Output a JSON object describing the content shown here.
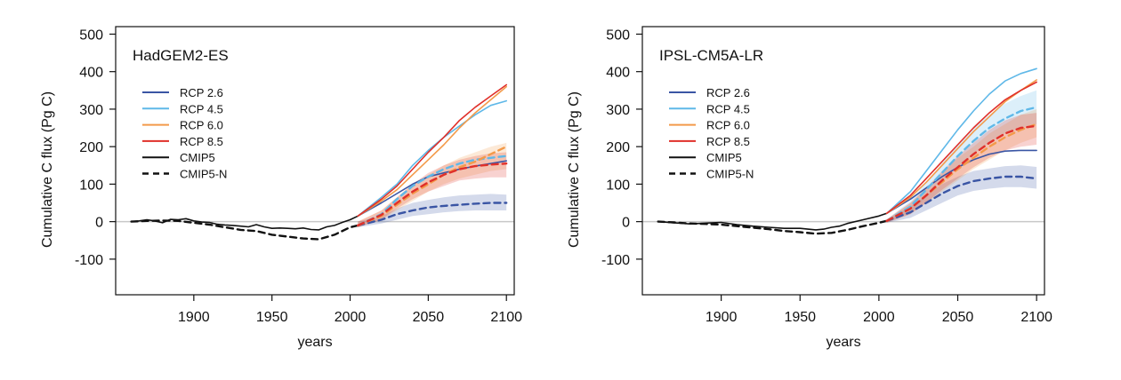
{
  "chart_data": [
    {
      "type": "line",
      "title": "HadGEM2-ES",
      "xlabel": "years",
      "ylabel": "Cumulative C flux (Pg C)",
      "xlim": [
        1850,
        2105
      ],
      "ylim": [
        -195,
        520
      ],
      "xticks": [
        1900,
        1950,
        2000,
        2050,
        2100
      ],
      "yticks": [
        -100,
        0,
        100,
        200,
        300,
        400,
        500
      ],
      "zero_line": true,
      "legend_position": "upper-left",
      "legend": [
        {
          "label": "RCP 2.6",
          "color": "#3a55a4",
          "dash": "solid"
        },
        {
          "label": "RCP 4.5",
          "color": "#5fb8e8",
          "dash": "solid"
        },
        {
          "label": "RCP 6.0",
          "color": "#f39a4a",
          "dash": "solid"
        },
        {
          "label": "RCP 8.5",
          "color": "#e0302a",
          "dash": "solid"
        },
        {
          "label": "CMIP5",
          "color": "#111111",
          "dash": "solid"
        },
        {
          "label": "CMIP5-N",
          "color": "#111111",
          "dash": "dashed"
        }
      ],
      "series": [
        {
          "label": "HadGEM2-ES historical",
          "kind": "historical",
          "color": "#111111",
          "dash": "solid",
          "x": [
            1860,
            1865,
            1870,
            1875,
            1880,
            1885,
            1890,
            1895,
            1900,
            1905,
            1910,
            1915,
            1920,
            1925,
            1930,
            1935,
            1940,
            1945,
            1950,
            1955,
            1960,
            1965,
            1970,
            1975,
            1980,
            1985,
            1990,
            1995,
            2000,
            2005
          ],
          "y": [
            0,
            2,
            5,
            2,
            -3,
            6,
            5,
            8,
            2,
            -1,
            -2,
            -7,
            -9,
            -10,
            -12,
            -14,
            -8,
            -14,
            -18,
            -17,
            -18,
            -19,
            -17,
            -21,
            -22,
            -14,
            -10,
            -2,
            5,
            15
          ]
        },
        {
          "label": "CMIP5-N historical",
          "kind": "historical",
          "color": "#111111",
          "dash": "dashed",
          "x": [
            1860,
            1870,
            1880,
            1890,
            1900,
            1910,
            1920,
            1930,
            1940,
            1950,
            1960,
            1970,
            1980,
            1990,
            2000,
            2005
          ],
          "y": [
            0,
            2,
            3,
            2,
            -3,
            -8,
            -15,
            -22,
            -25,
            -35,
            -40,
            -45,
            -47,
            -35,
            -15,
            -10
          ]
        },
        {
          "label": "RCP 2.6 CMIP5",
          "color": "#3a55a4",
          "dash": "solid",
          "x": [
            2005,
            2020,
            2030,
            2040,
            2050,
            2060,
            2070,
            2080,
            2090,
            2100
          ],
          "y": [
            15,
            50,
            75,
            100,
            120,
            130,
            140,
            148,
            155,
            162
          ]
        },
        {
          "label": "RCP 4.5 CMIP5",
          "color": "#5fb8e8",
          "dash": "solid",
          "x": [
            2005,
            2020,
            2030,
            2040,
            2050,
            2060,
            2070,
            2080,
            2090,
            2100
          ],
          "y": [
            15,
            65,
            100,
            150,
            190,
            225,
            255,
            285,
            310,
            322
          ]
        },
        {
          "label": "RCP 6.0 CMIP5",
          "color": "#f39a4a",
          "dash": "solid",
          "x": [
            2005,
            2020,
            2030,
            2040,
            2050,
            2060,
            2070,
            2080,
            2090,
            2100
          ],
          "y": [
            15,
            55,
            85,
            125,
            165,
            205,
            250,
            290,
            325,
            360
          ]
        },
        {
          "label": "RCP 8.5 CMIP5",
          "color": "#e0302a",
          "dash": "solid",
          "x": [
            2005,
            2020,
            2030,
            2040,
            2050,
            2060,
            2070,
            2080,
            2090,
            2100
          ],
          "y": [
            15,
            60,
            95,
            140,
            185,
            225,
            270,
            305,
            335,
            365
          ]
        },
        {
          "label": "RCP 2.6 CMIP5-N",
          "color": "#3a55a4",
          "dash": "dashed",
          "x": [
            2005,
            2020,
            2030,
            2040,
            2050,
            2060,
            2070,
            2080,
            2090,
            2100
          ],
          "y": [
            -10,
            5,
            20,
            30,
            38,
            42,
            45,
            48,
            50,
            50
          ],
          "band": [
            [
              -15,
              0
            ],
            [
              -5,
              15
            ],
            [
              5,
              35
            ],
            [
              15,
              50
            ],
            [
              20,
              58
            ],
            [
              25,
              65
            ],
            [
              28,
              70
            ],
            [
              30,
              72
            ],
            [
              30,
              74
            ],
            [
              30,
              72
            ]
          ]
        },
        {
          "label": "RCP 4.5 CMIP5-N",
          "color": "#5fb8e8",
          "dash": "dashed",
          "x": [
            2005,
            2020,
            2030,
            2040,
            2050,
            2060,
            2070,
            2080,
            2090,
            2100
          ],
          "y": [
            -10,
            20,
            60,
            95,
            120,
            140,
            155,
            165,
            170,
            175
          ]
        },
        {
          "label": "RCP 6.0 CMIP5-N",
          "color": "#f39a4a",
          "dash": "dashed",
          "x": [
            2005,
            2020,
            2030,
            2040,
            2050,
            2060,
            2070,
            2080,
            2090,
            2100
          ],
          "y": [
            -10,
            15,
            45,
            75,
            100,
            125,
            145,
            160,
            180,
            200
          ],
          "band": [
            [
              -15,
              0
            ],
            [
              5,
              30
            ],
            [
              30,
              65
            ],
            [
              55,
              100
            ],
            [
              80,
              125
            ],
            [
              100,
              150
            ],
            [
              115,
              170
            ],
            [
              125,
              185
            ],
            [
              135,
              200
            ],
            [
              140,
              210
            ]
          ]
        },
        {
          "label": "RCP 8.5 CMIP5-N",
          "color": "#e0302a",
          "dash": "dashed",
          "x": [
            2005,
            2020,
            2030,
            2040,
            2050,
            2060,
            2070,
            2080,
            2090,
            2100
          ],
          "y": [
            -10,
            18,
            50,
            80,
            105,
            125,
            140,
            148,
            152,
            155
          ],
          "band": [
            [
              -15,
              0
            ],
            [
              5,
              30
            ],
            [
              35,
              65
            ],
            [
              60,
              100
            ],
            [
              80,
              130
            ],
            [
              95,
              150
            ],
            [
              110,
              165
            ],
            [
              115,
              175
            ],
            [
              118,
              182
            ],
            [
              118,
              185
            ]
          ]
        }
      ]
    },
    {
      "type": "line",
      "title": "IPSL-CM5A-LR",
      "xlabel": "years",
      "ylabel": "Cumulative C flux (Pg C)",
      "xlim": [
        1850,
        2105
      ],
      "ylim": [
        -195,
        520
      ],
      "xticks": [
        1900,
        1950,
        2000,
        2050,
        2100
      ],
      "yticks": [
        -100,
        0,
        100,
        200,
        300,
        400,
        500
      ],
      "zero_line": true,
      "legend_position": "upper-left",
      "legend": [
        {
          "label": "RCP 2.6",
          "color": "#3a55a4",
          "dash": "solid"
        },
        {
          "label": "RCP 4.5",
          "color": "#5fb8e8",
          "dash": "solid"
        },
        {
          "label": "RCP 6.0",
          "color": "#f39a4a",
          "dash": "solid"
        },
        {
          "label": "RCP 8.5",
          "color": "#e0302a",
          "dash": "solid"
        },
        {
          "label": "CMIP5",
          "color": "#111111",
          "dash": "solid"
        },
        {
          "label": "CMIP5-N",
          "color": "#111111",
          "dash": "dashed"
        }
      ],
      "series": [
        {
          "label": "IPSL-CM5A-LR historical",
          "kind": "historical",
          "color": "#111111",
          "dash": "solid",
          "x": [
            1860,
            1870,
            1880,
            1890,
            1900,
            1910,
            1920,
            1930,
            1940,
            1950,
            1955,
            1960,
            1965,
            1970,
            1975,
            1980,
            1990,
            2000,
            2005
          ],
          "y": [
            0,
            -3,
            -6,
            -4,
            -2,
            -8,
            -12,
            -15,
            -18,
            -18,
            -20,
            -22,
            -20,
            -15,
            -12,
            -5,
            5,
            15,
            22
          ]
        },
        {
          "label": "CMIP5-N historical",
          "kind": "historical",
          "color": "#111111",
          "dash": "dashed",
          "x": [
            1860,
            1870,
            1880,
            1890,
            1900,
            1910,
            1920,
            1930,
            1940,
            1950,
            1960,
            1970,
            1980,
            1990,
            2000,
            2005
          ],
          "y": [
            0,
            -2,
            -5,
            -6,
            -8,
            -12,
            -16,
            -20,
            -25,
            -28,
            -32,
            -30,
            -22,
            -12,
            -3,
            2
          ]
        },
        {
          "label": "RCP 2.6 CMIP5",
          "color": "#3a55a4",
          "dash": "solid",
          "x": [
            2005,
            2020,
            2030,
            2040,
            2050,
            2060,
            2070,
            2080,
            2090,
            2100
          ],
          "y": [
            22,
            60,
            90,
            120,
            145,
            165,
            180,
            188,
            190,
            190
          ]
        },
        {
          "label": "RCP 4.5 CMIP5",
          "color": "#5fb8e8",
          "dash": "solid",
          "x": [
            2005,
            2020,
            2030,
            2040,
            2050,
            2060,
            2070,
            2080,
            2090,
            2100
          ],
          "y": [
            22,
            80,
            135,
            190,
            245,
            295,
            340,
            375,
            395,
            408
          ]
        },
        {
          "label": "RCP 6.0 CMIP5",
          "color": "#f39a4a",
          "dash": "solid",
          "x": [
            2005,
            2020,
            2030,
            2040,
            2050,
            2060,
            2070,
            2080,
            2090,
            2100
          ],
          "y": [
            22,
            65,
            105,
            150,
            195,
            240,
            280,
            320,
            350,
            378
          ]
        },
        {
          "label": "RCP 8.5 CMIP5",
          "color": "#e0302a",
          "dash": "solid",
          "x": [
            2005,
            2020,
            2030,
            2040,
            2050,
            2060,
            2070,
            2080,
            2090,
            2100
          ],
          "y": [
            22,
            70,
            115,
            160,
            205,
            250,
            290,
            325,
            350,
            372
          ]
        },
        {
          "label": "RCP 2.6 CMIP5-N",
          "color": "#3a55a4",
          "dash": "dashed",
          "x": [
            2005,
            2020,
            2030,
            2040,
            2050,
            2060,
            2070,
            2080,
            2090,
            2100
          ],
          "y": [
            2,
            25,
            50,
            75,
            95,
            108,
            115,
            120,
            120,
            115
          ],
          "band": [
            [
              -3,
              6
            ],
            [
              10,
              40
            ],
            [
              30,
              70
            ],
            [
              50,
              100
            ],
            [
              70,
              120
            ],
            [
              82,
              135
            ],
            [
              88,
              142
            ],
            [
              92,
              148
            ],
            [
              92,
              150
            ],
            [
              88,
              146
            ]
          ]
        },
        {
          "label": "RCP 4.5 CMIP5-N",
          "color": "#5fb8e8",
          "dash": "dashed",
          "x": [
            2005,
            2020,
            2030,
            2040,
            2050,
            2060,
            2070,
            2080,
            2090,
            2100
          ],
          "y": [
            2,
            40,
            85,
            130,
            175,
            215,
            250,
            275,
            295,
            305
          ],
          "band": [
            [
              -3,
              6
            ],
            [
              25,
              55
            ],
            [
              65,
              105
            ],
            [
              105,
              155
            ],
            [
              145,
              205
            ],
            [
              180,
              250
            ],
            [
              210,
              285
            ],
            [
              235,
              315
            ],
            [
              250,
              335
            ],
            [
              260,
              350
            ]
          ]
        },
        {
          "label": "RCP 6.0 CMIP5-N",
          "color": "#f39a4a",
          "dash": "dashed",
          "x": [
            2005,
            2020,
            2030,
            2040,
            2050,
            2060,
            2070,
            2080,
            2090,
            2100
          ],
          "y": [
            2,
            35,
            70,
            105,
            140,
            170,
            200,
            225,
            245,
            260
          ],
          "band": [
            [
              -3,
              6
            ],
            [
              20,
              50
            ],
            [
              50,
              90
            ],
            [
              80,
              130
            ],
            [
              110,
              170
            ],
            [
              140,
              200
            ],
            [
              165,
              235
            ],
            [
              190,
              260
            ],
            [
              210,
              285
            ],
            [
              225,
              300
            ]
          ]
        },
        {
          "label": "RCP 8.5 CMIP5-N",
          "color": "#e0302a",
          "dash": "dashed",
          "x": [
            2005,
            2020,
            2030,
            2040,
            2050,
            2060,
            2070,
            2080,
            2090,
            2100
          ],
          "y": [
            2,
            35,
            70,
            110,
            145,
            180,
            210,
            235,
            250,
            255
          ],
          "band": [
            [
              -3,
              6
            ],
            [
              20,
              50
            ],
            [
              50,
              90
            ],
            [
              85,
              135
            ],
            [
              115,
              175
            ],
            [
              145,
              210
            ],
            [
              170,
              245
            ],
            [
              190,
              270
            ],
            [
              200,
              285
            ],
            [
              205,
              290
            ]
          ]
        }
      ]
    }
  ]
}
